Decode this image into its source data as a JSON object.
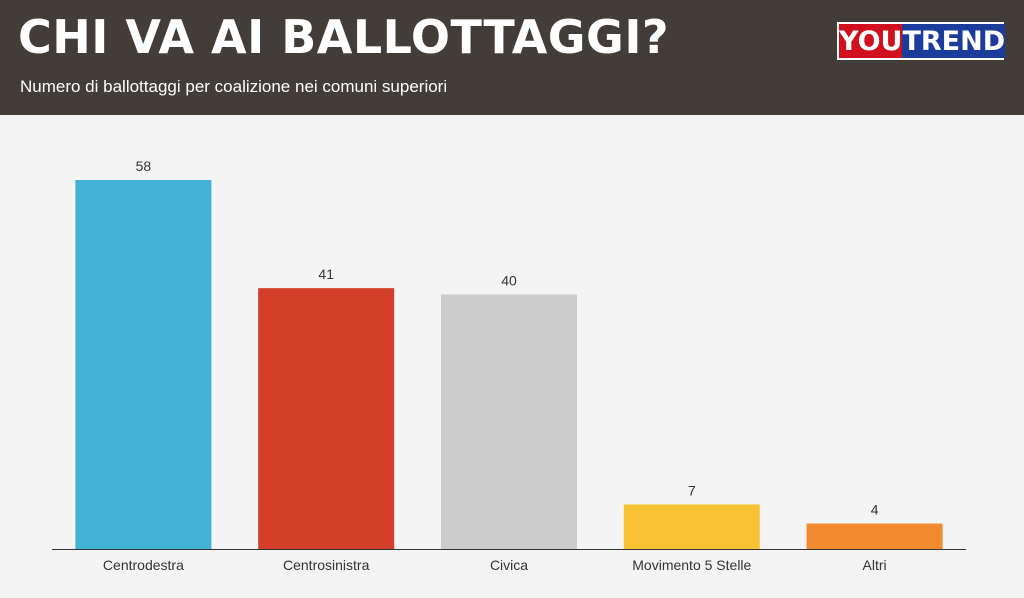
{
  "header": {
    "title": "CHI VA AI BALLOTTAGGI?",
    "subtitle": "Numero di ballottaggi per coalizione nei comuni superiori",
    "logo_you": "YOU",
    "logo_trend": "TREND"
  },
  "chart_data": {
    "type": "bar",
    "categories": [
      "Centrodestra",
      "Centrosinistra",
      "Civica",
      "Movimento 5 Stelle",
      "Altri"
    ],
    "values": [
      58,
      41,
      40,
      7,
      4
    ],
    "colors": [
      "#44b2d6",
      "#d33f28",
      "#cccccc",
      "#f8c332",
      "#f28b2f"
    ],
    "ylim": [
      0,
      58
    ],
    "grid": false,
    "legend": "none"
  }
}
